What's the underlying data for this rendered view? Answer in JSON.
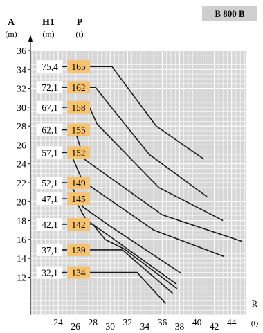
{
  "model_badge": "B 800 B",
  "chart_data": {
    "type": "line",
    "columns": [
      {
        "symbol": "A",
        "unit": "(m)"
      },
      {
        "symbol": "H1",
        "unit": "(m)"
      },
      {
        "symbol": "P",
        "unit": "(t)"
      }
    ],
    "xlabel": "R",
    "xunit": "(t)",
    "ylim": [
      8,
      36
    ],
    "xlim": [
      20.8,
      45.7
    ],
    "y_ticks": [
      12,
      14,
      16,
      18,
      20,
      22,
      24,
      26,
      28,
      30,
      32,
      34,
      36
    ],
    "x_ticks": [
      "24",
      "26",
      "28",
      "30",
      "32",
      "34",
      "36",
      "38",
      "40",
      "42",
      "44"
    ],
    "grid": true,
    "line_color": "#1a1a1a",
    "grid_color": "#ffffff",
    "plot_background": "#d6d6d6",
    "capacity_box_color": "#f7c36e",
    "series": [
      {
        "height": "75,4",
        "capacity": "165",
        "points": [
          [
            22.0,
            34.3
          ],
          [
            30.2,
            34.3
          ],
          [
            35.3,
            28.0
          ],
          [
            40.8,
            24.5
          ]
        ]
      },
      {
        "height": "72,1",
        "capacity": "162",
        "points": [
          [
            22.0,
            32.1
          ],
          [
            28.3,
            32.1
          ],
          [
            30.3,
            29.8
          ],
          [
            34.5,
            25.0
          ],
          [
            41.2,
            20.5
          ]
        ]
      },
      {
        "height": "67,1",
        "capacity": "158",
        "points": [
          [
            22.0,
            30.0
          ],
          [
            27.6,
            30.0
          ],
          [
            28.5,
            28.2
          ],
          [
            35.6,
            21.5
          ],
          [
            43.0,
            18.0
          ]
        ]
      },
      {
        "height": "62,1",
        "capacity": "155",
        "points": [
          [
            22.0,
            27.6
          ],
          [
            25.9,
            27.6
          ],
          [
            27.0,
            24.5
          ],
          [
            36.0,
            18.6
          ],
          [
            45.2,
            15.8
          ]
        ]
      },
      {
        "height": "57,1",
        "capacity": "152",
        "points": [
          [
            22.0,
            25.2
          ],
          [
            25.4,
            25.2
          ],
          [
            26.8,
            22.2
          ],
          [
            35.0,
            17.0
          ],
          [
            43.1,
            14.2
          ]
        ]
      },
      {
        "height": "52,1",
        "capacity": "149",
        "points": [
          [
            22.0,
            22.0
          ],
          [
            25.3,
            22.0
          ],
          [
            26.9,
            19.4
          ],
          [
            30.0,
            17.4
          ],
          [
            38.2,
            12.4
          ]
        ]
      },
      {
        "height": "47,1",
        "capacity": "145",
        "points": [
          [
            22.0,
            20.3
          ],
          [
            25.9,
            20.3
          ],
          [
            27.2,
            18.1
          ],
          [
            30.3,
            16.1
          ],
          [
            37.6,
            11.3
          ]
        ]
      },
      {
        "height": "42,1",
        "capacity": "142",
        "points": [
          [
            22.0,
            17.6
          ],
          [
            28.0,
            17.6
          ],
          [
            29.4,
            16.0
          ],
          [
            31.6,
            15.0
          ],
          [
            37.7,
            10.8
          ]
        ]
      },
      {
        "height": "37,1",
        "capacity": "139",
        "points": [
          [
            22.0,
            14.9
          ],
          [
            31.4,
            14.9
          ],
          [
            37.2,
            10.3
          ]
        ]
      },
      {
        "height": "32,1",
        "capacity": "134",
        "points": [
          [
            22.0,
            12.5
          ],
          [
            33.1,
            12.5
          ],
          [
            36.4,
            9.2
          ]
        ]
      }
    ]
  }
}
